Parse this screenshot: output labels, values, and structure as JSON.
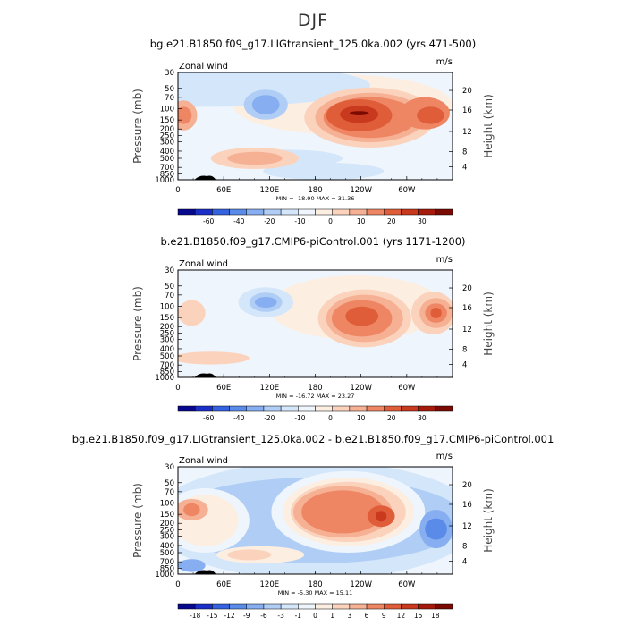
{
  "page": {
    "title": "DJF"
  },
  "chart_data": [
    {
      "type": "heatmap",
      "title": "bg.e21.B1850.f09_g17.LIGtransient_125.0ka.002 (yrs 471-500)",
      "left_label": "Zonal wind",
      "units": "m/s",
      "ylabel": "Pressure (mb)",
      "ylabel_right": "Height (km)",
      "x_ticks": [
        "0",
        "60E",
        "120E",
        "180",
        "120W",
        "60W"
      ],
      "y_ticks": [
        "30",
        "50",
        "70",
        "100",
        "150",
        "200",
        "250",
        "300",
        "400",
        "500",
        "700",
        "850",
        "1000"
      ],
      "y_right_ticks": [
        "20",
        "16",
        "12",
        "8",
        "4"
      ],
      "stats": "MIN = -18.90   MAX = 31.36",
      "colorbar_labels": [
        "-60",
        "-40",
        "-20",
        "-10",
        "0",
        "10",
        "20",
        "30"
      ],
      "colorbar_colors": [
        "#08088f",
        "#1a2fc7",
        "#3462e0",
        "#5b8be8",
        "#86aef0",
        "#afcdf5",
        "#d3e6fa",
        "#eef5fc",
        "#fdeee2",
        "#fbd3bd",
        "#f6b094",
        "#ee8664",
        "#e05d3a",
        "#c9391e",
        "#a61a0b",
        "#7a0a02"
      ]
    },
    {
      "type": "heatmap",
      "title": "b.e21.B1850.f09_g17.CMIP6-piControl.001 (yrs 1171-1200)",
      "left_label": "Zonal wind",
      "units": "m/s",
      "ylabel": "Pressure (mb)",
      "ylabel_right": "Height (km)",
      "x_ticks": [
        "0",
        "60E",
        "120E",
        "180",
        "120W",
        "60W"
      ],
      "y_ticks": [
        "30",
        "50",
        "70",
        "100",
        "150",
        "200",
        "250",
        "300",
        "400",
        "500",
        "700",
        "850",
        "1000"
      ],
      "y_right_ticks": [
        "20",
        "16",
        "12",
        "8",
        "4"
      ],
      "stats": "MIN = -16.72   MAX = 23.27",
      "colorbar_labels": [
        "-60",
        "-40",
        "-20",
        "-10",
        "0",
        "10",
        "20",
        "30"
      ],
      "colorbar_colors": [
        "#08088f",
        "#1a2fc7",
        "#3462e0",
        "#5b8be8",
        "#86aef0",
        "#afcdf5",
        "#d3e6fa",
        "#eef5fc",
        "#fdeee2",
        "#fbd3bd",
        "#f6b094",
        "#ee8664",
        "#e05d3a",
        "#c9391e",
        "#a61a0b",
        "#7a0a02"
      ]
    },
    {
      "type": "heatmap",
      "title": "bg.e21.B1850.f09_g17.LIGtransient_125.0ka.002 - b.e21.B1850.f09_g17.CMIP6-piControl.001",
      "left_label": "Zonal wind",
      "units": "m/s",
      "ylabel": "Pressure (mb)",
      "ylabel_right": "Height (km)",
      "x_ticks": [
        "0",
        "60E",
        "120E",
        "180",
        "120W",
        "60W"
      ],
      "y_ticks": [
        "30",
        "50",
        "70",
        "100",
        "150",
        "200",
        "250",
        "300",
        "400",
        "500",
        "700",
        "850",
        "1000"
      ],
      "y_right_ticks": [
        "20",
        "16",
        "12",
        "8",
        "4"
      ],
      "stats": "MIN = -5.30   MAX = 15.11",
      "colorbar_labels": [
        "-18",
        "-15",
        "-12",
        "-9",
        "-6",
        "-3",
        "-1",
        "0",
        "1",
        "3",
        "6",
        "9",
        "12",
        "15",
        "18"
      ],
      "colorbar_colors": [
        "#08088f",
        "#1a2fc7",
        "#3462e0",
        "#5b8be8",
        "#86aef0",
        "#afcdf5",
        "#d3e6fa",
        "#eef5fc",
        "#fdeee2",
        "#fbd3bd",
        "#f6b094",
        "#ee8664",
        "#e05d3a",
        "#c9391e",
        "#a61a0b",
        "#7a0a02"
      ]
    }
  ]
}
